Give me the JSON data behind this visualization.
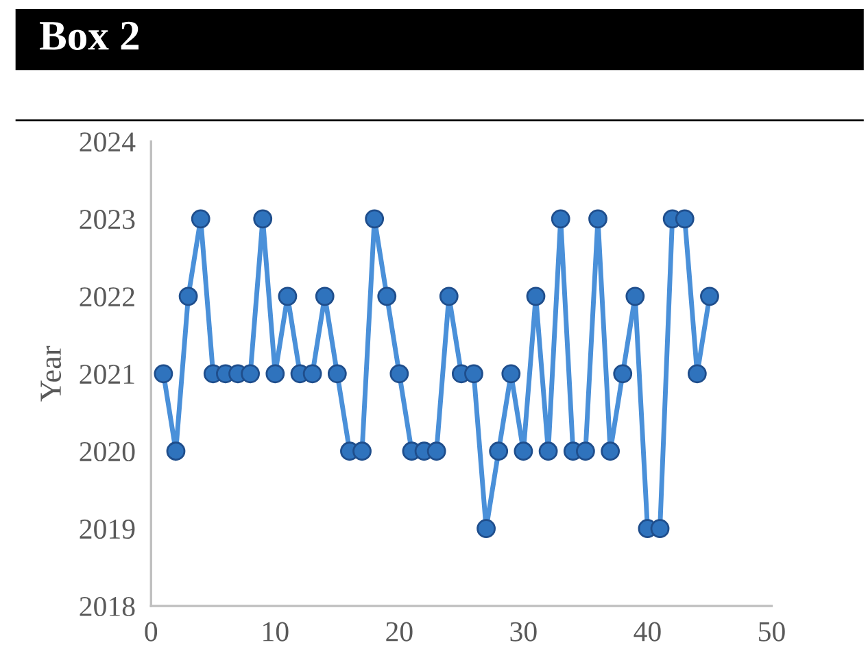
{
  "chart_data": {
    "type": "line",
    "title": "Box 2",
    "ylabel": "Year",
    "x": [
      1,
      2,
      3,
      4,
      5,
      6,
      7,
      8,
      9,
      10,
      11,
      12,
      13,
      14,
      15,
      16,
      17,
      18,
      19,
      20,
      21,
      22,
      23,
      24,
      25,
      26,
      27,
      28,
      29,
      30,
      31,
      32,
      33,
      34,
      35,
      36,
      37,
      38,
      39,
      40,
      41,
      42,
      43,
      44,
      45
    ],
    "series": [
      {
        "color": "#4a90d9",
        "values": [
          2021,
          2020,
          2022,
          2023,
          2021,
          2021,
          2021,
          2021,
          2023,
          2021,
          2022,
          2021,
          2021,
          2022,
          2021,
          2020,
          2020,
          2023,
          2022,
          2021,
          2020,
          2020,
          2020,
          2022,
          2021,
          2021,
          2019,
          2020,
          2021,
          2020,
          2022,
          2020,
          2023,
          2020,
          2020,
          2023,
          2020,
          2021,
          2022,
          2019,
          2019,
          2023,
          2023,
          2021,
          2022
        ]
      }
    ],
    "xlim": [
      0,
      50
    ],
    "xticks": [
      0,
      10,
      20,
      30,
      40,
      50
    ],
    "ylim": [
      2018,
      2024
    ],
    "yticks": [
      2018,
      2019,
      2020,
      2021,
      2022,
      2023,
      2024
    ],
    "marker": "circle",
    "line_style": "solid",
    "grid": false
  }
}
